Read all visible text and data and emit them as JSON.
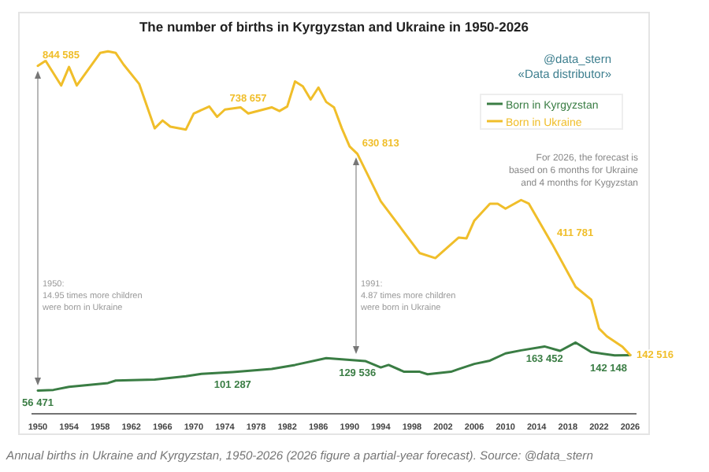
{
  "chart_data": {
    "type": "line",
    "title": "The number of births in Kyrgyzstan and Ukraine in 1950-2026",
    "xlim": [
      1950,
      2026
    ],
    "xticks": [
      1950,
      1954,
      1958,
      1962,
      1966,
      1970,
      1974,
      1978,
      1982,
      1986,
      1990,
      1994,
      1998,
      2002,
      2006,
      2010,
      2014,
      2018,
      2022,
      2026
    ],
    "tick_labels": "x",
    "legend": "top right",
    "series": [
      {
        "name": "Born in Kyrgyzstan",
        "color": "#3a7d44",
        "x": [
          1950,
          1952,
          1954,
          1959,
          1960,
          1965,
          1969,
          1971,
          1975,
          1980,
          1983,
          1987,
          1991,
          1992,
          1994,
          1995,
          1997,
          1999,
          2000,
          2003,
          2004,
          2006,
          2008,
          2010,
          2012,
          2015,
          2017,
          2019,
          2021,
          2024,
          2026
        ],
        "values": [
          56471,
          58000,
          65500,
          74600,
          80700,
          83000,
          91000,
          97000,
          101287,
          108700,
          118600,
          135000,
          129536,
          128000,
          112500,
          118600,
          102000,
          102000,
          96000,
          102000,
          108700,
          121000,
          129000,
          146600,
          154000,
          163452,
          152700,
          173000,
          150000,
          141600,
          142148
        ],
        "value_labels": [
          "56 471",
          null,
          null,
          null,
          null,
          null,
          null,
          null,
          "101 287",
          null,
          null,
          null,
          "129 536",
          null,
          null,
          null,
          null,
          null,
          null,
          null,
          null,
          null,
          null,
          null,
          null,
          "163 452",
          null,
          null,
          null,
          null,
          "142 148"
        ]
      },
      {
        "name": "Born in Ukraine",
        "color": "#f0be2a",
        "x": [
          1950,
          1951,
          1953,
          1954,
          1955,
          1958,
          1959,
          1960,
          1961,
          1963,
          1965,
          1966,
          1967,
          1969,
          1970,
          1972,
          1973,
          1974,
          1976,
          1977,
          1980,
          1981,
          1982,
          1983,
          1984,
          1985,
          1986,
          1987,
          1988,
          1989,
          1990,
          1991,
          1994,
          1999,
          2001,
          2004,
          2005,
          2006,
          2008,
          2009,
          2010,
          2012,
          2013,
          2016,
          2019,
          2021,
          2022,
          2023,
          2025,
          2026
        ],
        "values": [
          844585,
          857000,
          797000,
          842000,
          797000,
          876000,
          880000,
          876000,
          848000,
          801000,
          693000,
          712000,
          697000,
          690000,
          729000,
          746000,
          721000,
          738657,
          744000,
          729000,
          744000,
          735000,
          746000,
          807000,
          795000,
          763000,
          792000,
          757000,
          744000,
          693000,
          649000,
          630813,
          516000,
          390000,
          378000,
          428000,
          426000,
          469000,
          510000,
          510000,
          498000,
          519000,
          510000,
          411781,
          308000,
          277000,
          207000,
          188000,
          163000,
          142516
        ],
        "value_labels": [
          "844 585",
          null,
          null,
          null,
          null,
          null,
          null,
          null,
          null,
          null,
          null,
          null,
          null,
          null,
          null,
          null,
          null,
          "738 657",
          null,
          null,
          null,
          null,
          null,
          null,
          null,
          null,
          null,
          null,
          null,
          null,
          null,
          "630 813",
          null,
          null,
          null,
          null,
          null,
          null,
          null,
          null,
          null,
          null,
          null,
          "411 781",
          null,
          null,
          null,
          null,
          null,
          "142 516"
        ]
      }
    ],
    "annotations": [
      "@data_stern\n«Data distributor»",
      "For 2026, the forecast is\nbased on 6 months for Ukraine\nand 4 months for Kygyzstan",
      "1950:\n14.95 times more children\nwere born in Ukraine",
      "1991:\n4.87 times more children\nwere born in Ukraine",
      "Annual births in Ukraine and Kyrgyzstan, 1950-2026 (2026 figure a partial-year forecast). Source: @data_stern"
    ]
  }
}
